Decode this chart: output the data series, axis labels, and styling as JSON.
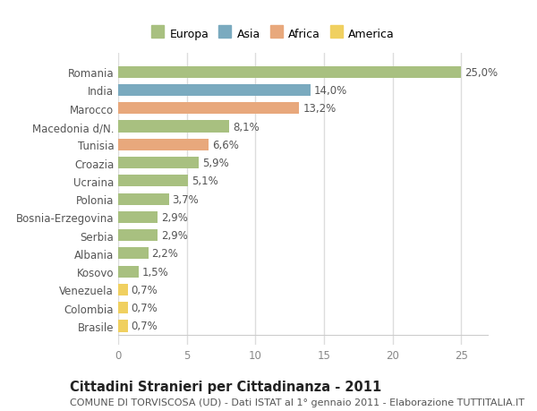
{
  "countries": [
    "Romania",
    "India",
    "Marocco",
    "Macedonia d/N.",
    "Tunisia",
    "Croazia",
    "Ucraina",
    "Polonia",
    "Bosnia-Erzegovina",
    "Serbia",
    "Albania",
    "Kosovo",
    "Venezuela",
    "Colombia",
    "Brasile"
  ],
  "values": [
    25.0,
    14.0,
    13.2,
    8.1,
    6.6,
    5.9,
    5.1,
    3.7,
    2.9,
    2.9,
    2.2,
    1.5,
    0.7,
    0.7,
    0.7
  ],
  "labels": [
    "25,0%",
    "14,0%",
    "13,2%",
    "8,1%",
    "6,6%",
    "5,9%",
    "5,1%",
    "3,7%",
    "2,9%",
    "2,9%",
    "2,2%",
    "1,5%",
    "0,7%",
    "0,7%",
    "0,7%"
  ],
  "colors": [
    "#a8c080",
    "#7aaabf",
    "#e8a87c",
    "#a8c080",
    "#e8a87c",
    "#a8c080",
    "#a8c080",
    "#a8c080",
    "#a8c080",
    "#a8c080",
    "#a8c080",
    "#a8c080",
    "#f0d060",
    "#f0d060",
    "#f0d060"
  ],
  "legend_labels": [
    "Europa",
    "Asia",
    "Africa",
    "America"
  ],
  "legend_colors": [
    "#a8c080",
    "#7aaabf",
    "#e8a87c",
    "#f0d060"
  ],
  "title": "Cittadini Stranieri per Cittadinanza - 2011",
  "subtitle": "COMUNE DI TORVISCOSA (UD) - Dati ISTAT al 1° gennaio 2011 - Elaborazione TUTTITALIA.IT",
  "xlim": [
    0,
    27
  ],
  "xticks": [
    0,
    5,
    10,
    15,
    20,
    25
  ],
  "background_color": "#ffffff",
  "plot_bg_color": "#ffffff",
  "grid_color": "#dddddd",
  "bar_height": 0.65,
  "label_fontsize": 8.5,
  "tick_fontsize": 8.5,
  "title_fontsize": 10.5,
  "subtitle_fontsize": 8
}
